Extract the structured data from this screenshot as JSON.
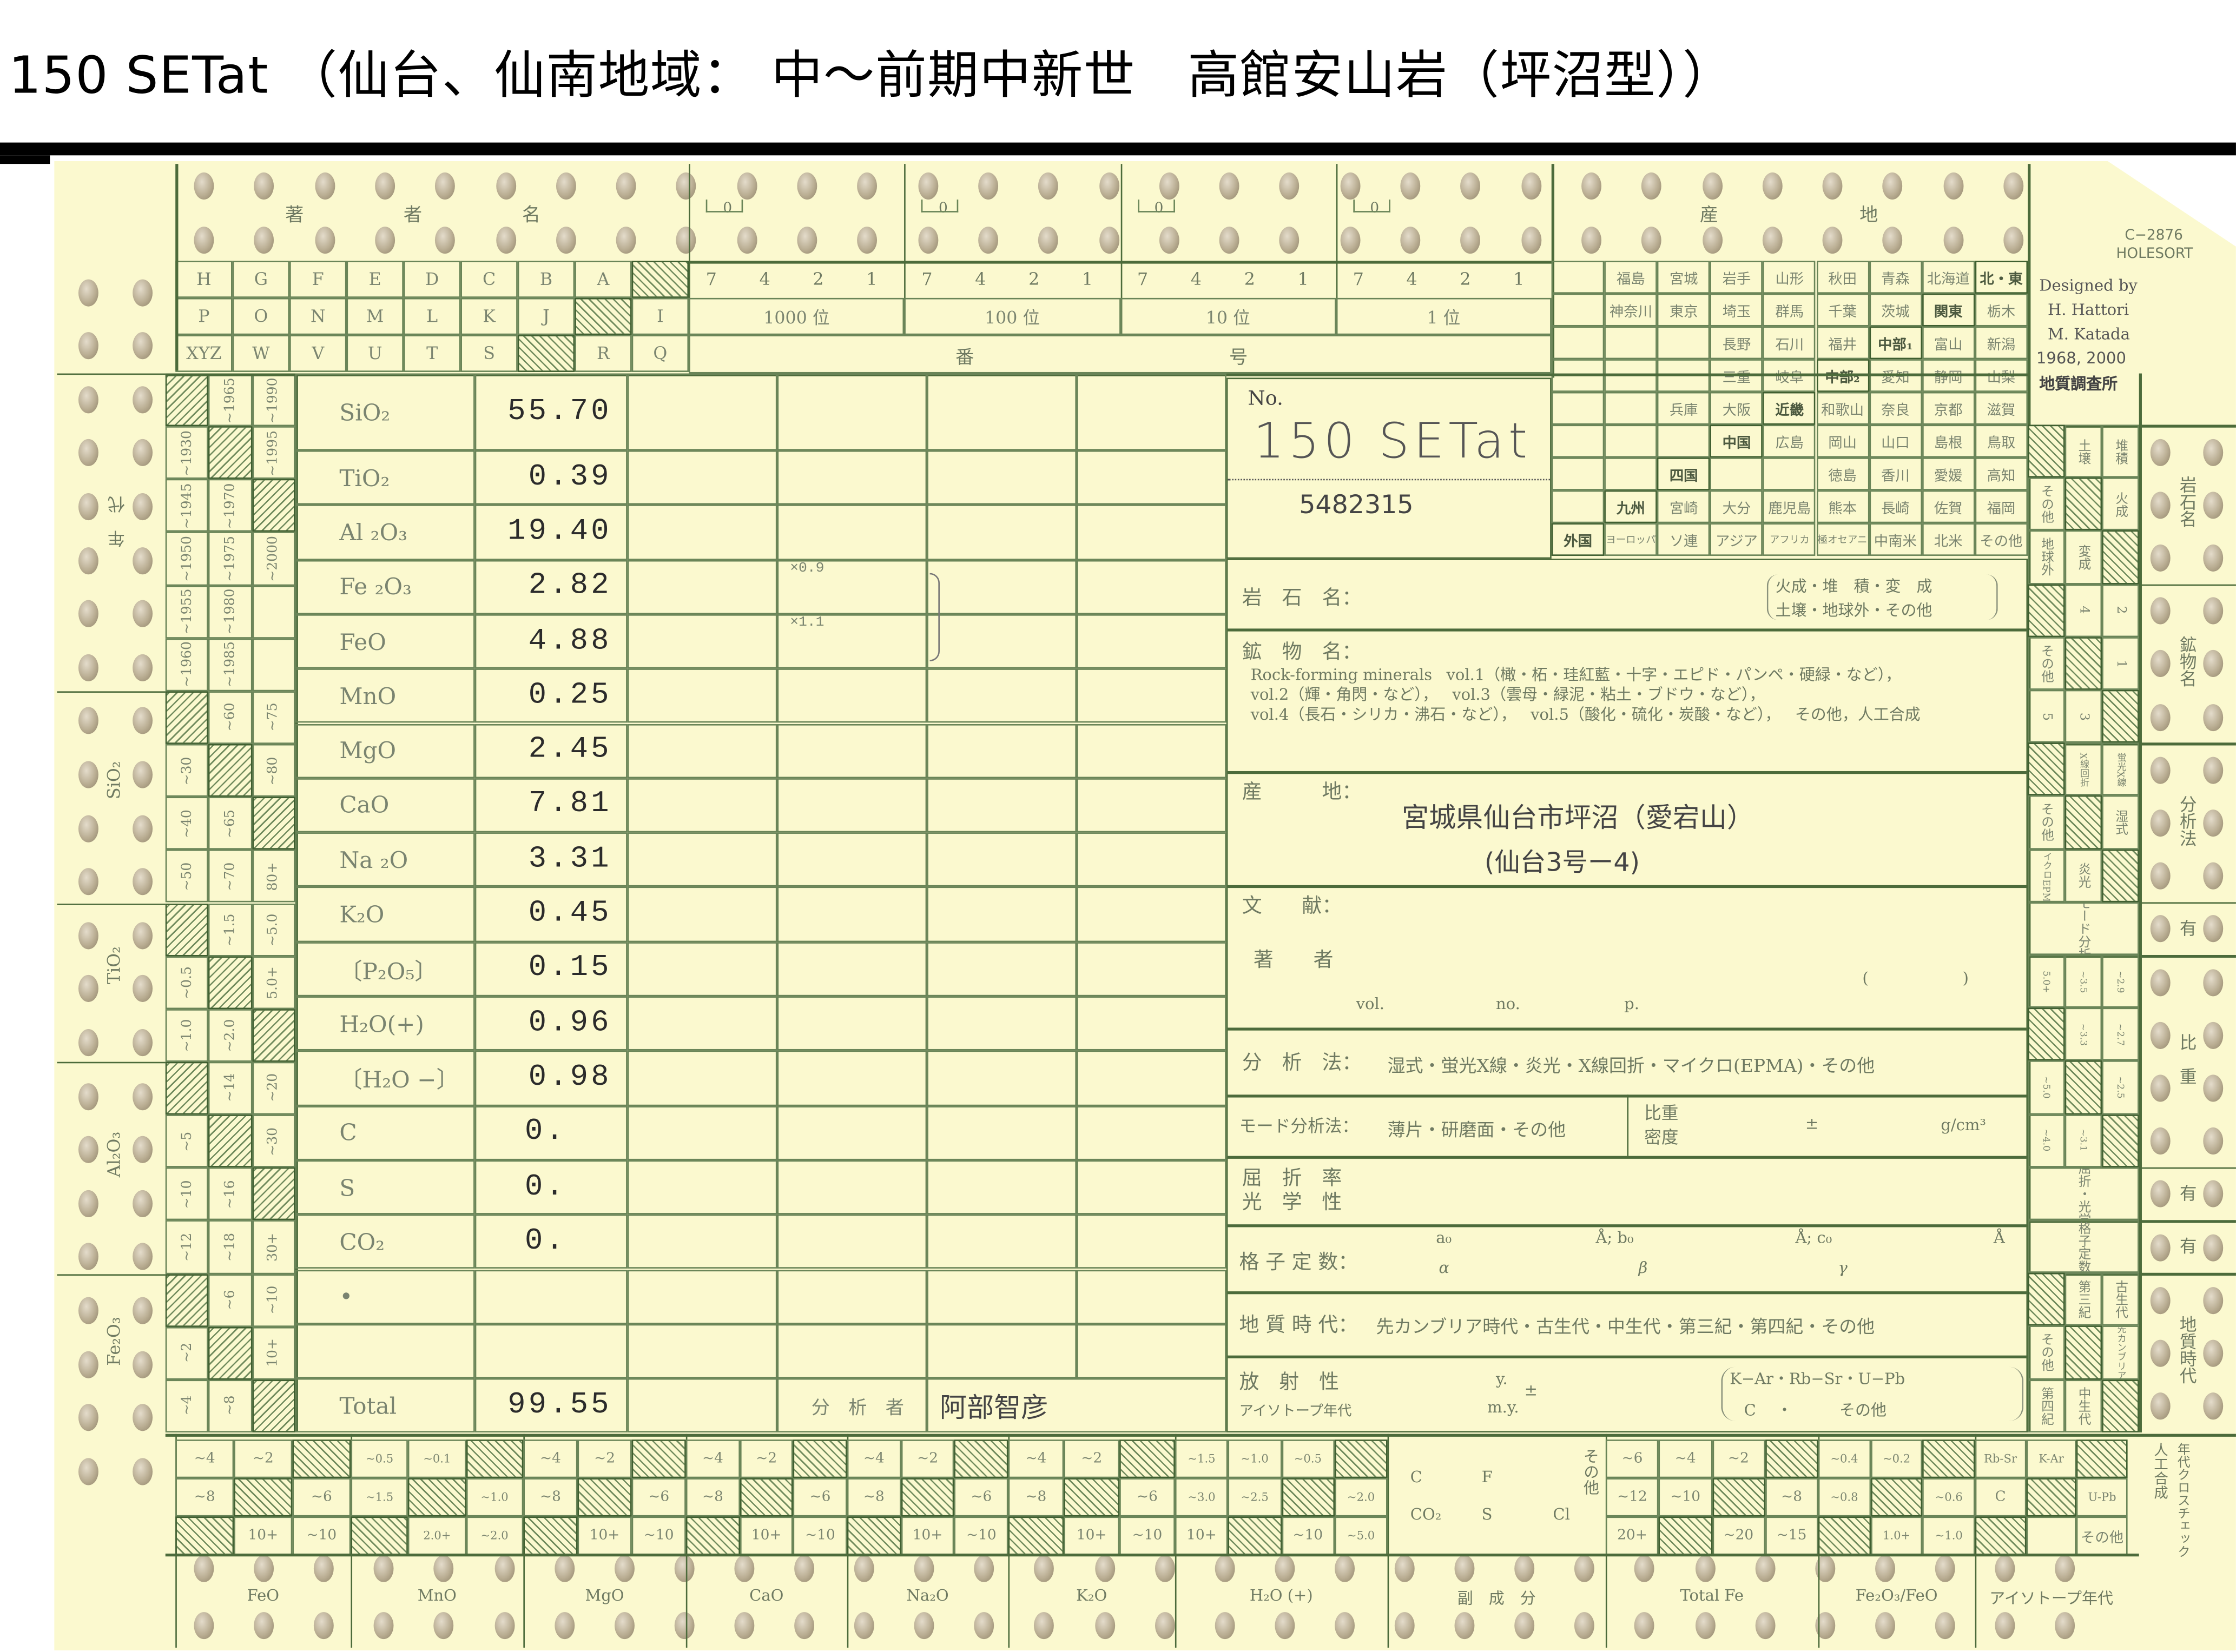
{
  "title": "150 SETat （仙台、仙南地域： 中～前期中新世　高館安山岩（坪沼型））",
  "colors": {
    "card": "#fbf9cf",
    "lines": "#4c6b3b",
    "print": "#6d7a5e",
    "typed": "#2b2b2b"
  },
  "card_info": {
    "form_code": "C−2876",
    "brand": "HOLESORT",
    "designed_by": "Designed by",
    "designer_1": "H. Hattori",
    "designer_2": "M. Katada",
    "years": "1968, 2000",
    "publisher": "地質調査所"
  },
  "author_section": {
    "label_chars": [
      "著",
      "者",
      "名"
    ],
    "rows": [
      [
        "H",
        "G",
        "F",
        "E",
        "D",
        "C",
        "B",
        "A",
        null
      ],
      [
        "P",
        "O",
        "N",
        "M",
        "L",
        "K",
        "J",
        null,
        "I"
      ],
      [
        "XYZ",
        "W",
        "V",
        "U",
        "T",
        "S",
        null,
        "R",
        "Q"
      ]
    ]
  },
  "number_section": {
    "bracket_mark": "0",
    "groups": [
      {
        "digits": [
          "7",
          "4",
          "2",
          "1"
        ],
        "place": "1000 位"
      },
      {
        "digits": [
          "7",
          "4",
          "2",
          "1"
        ],
        "place": "100 位"
      },
      {
        "digits": [
          "7",
          "4",
          "2",
          "1"
        ],
        "place": "10 位"
      },
      {
        "digits": [
          "7",
          "4",
          "2",
          "1"
        ],
        "place": "1 位"
      }
    ],
    "label_chars": [
      "番",
      "号"
    ]
  },
  "locality_section": {
    "label_chars": [
      "産",
      "地"
    ],
    "rows": [
      [
        "",
        "福島",
        "宮城",
        "岩手",
        "山形",
        "秋田",
        "青森",
        "北海道",
        "北・東"
      ],
      [
        "",
        "神奈川",
        "東京",
        "埼玉",
        "群馬",
        "千葉",
        "茨城",
        "関東",
        "栃木"
      ],
      [
        "",
        "",
        "",
        "長野",
        "石川",
        "福井",
        "中部₁",
        "富山",
        "新潟"
      ],
      [
        "",
        "",
        "",
        "三重",
        "岐阜",
        "中部₂",
        "愛知",
        "静岡",
        "山梨"
      ],
      [
        "",
        "",
        "兵庫",
        "大阪",
        "近畿",
        "和歌山",
        "奈良",
        "京都",
        "滋賀"
      ],
      [
        "",
        "",
        "",
        "中国",
        "広島",
        "岡山",
        "山口",
        "島根",
        "鳥取"
      ],
      [
        "",
        "",
        "四国",
        "",
        "",
        "徳島",
        "香川",
        "愛媛",
        "高知"
      ],
      [
        "",
        "九州",
        "宮崎",
        "大分",
        "鹿児島",
        "熊本",
        "長崎",
        "佐賀",
        "福岡"
      ],
      [
        "外国",
        "ヨーロッパ",
        "ソ連",
        "アジア",
        "アフリカ",
        "南極オセアニア",
        "中南米",
        "北米",
        "その他"
      ]
    ],
    "region_cells": [
      "北・東",
      "関東",
      "中部₁",
      "中部₂",
      "近畿",
      "中国",
      "四国",
      "九州",
      "外国"
    ]
  },
  "left_grid": {
    "groups": [
      {
        "label": "年　代",
        "rows": [
          [
            null,
            "~1965",
            "~1990"
          ],
          [
            "~1930",
            null,
            "~1995"
          ],
          [
            "~1945",
            "~1970",
            null
          ],
          [
            "~1950",
            "~1975",
            "~2000"
          ],
          [
            "~1955",
            "~1980",
            ""
          ],
          [
            "~1960",
            "~1985",
            ""
          ]
        ]
      },
      {
        "label": "SiO₂",
        "rows": [
          [
            null,
            "~60",
            "~75"
          ],
          [
            "~30",
            null,
            "~80"
          ],
          [
            "~40",
            "~65",
            null
          ],
          [
            "~50",
            "~70",
            "80+"
          ]
        ]
      },
      {
        "label": "TiO₂",
        "rows": [
          [
            null,
            "~1.5",
            "~5.0"
          ],
          [
            "~0.5",
            null,
            "5.0+"
          ],
          [
            "~1.0",
            "~2.0",
            null
          ]
        ]
      },
      {
        "label": "Al₂O₃",
        "rows": [
          [
            null,
            "~14",
            "~20"
          ],
          [
            "~5",
            null,
            "~30"
          ],
          [
            "~10",
            "~16",
            null
          ],
          [
            "~12",
            "~18",
            "30+"
          ]
        ]
      },
      {
        "label": "Fe₂O₃",
        "rows": [
          [
            null,
            "~6",
            "~10"
          ],
          [
            "~2",
            null,
            "10+"
          ],
          [
            "~4",
            "~8",
            null
          ]
        ]
      }
    ]
  },
  "right_grid": {
    "groups": [
      {
        "label": "岩石名",
        "rows": [
          [
            null,
            "土壌",
            "堆積"
          ],
          [
            "その他",
            null,
            "火成"
          ],
          [
            "地球外",
            "変成",
            null
          ]
        ]
      },
      {
        "label": "鉱物名",
        "rows": [
          [
            null,
            "4",
            "2"
          ],
          [
            "その他",
            null,
            "1"
          ],
          [
            "5",
            "3",
            null
          ]
        ]
      },
      {
        "label": "分析法",
        "rows": [
          [
            null,
            "X線回折",
            "蛍光X線"
          ],
          [
            "その他",
            null,
            "湿式"
          ],
          [
            "マイクロEPMA",
            "炎光",
            null
          ]
        ]
      },
      {
        "label": "有",
        "merged": "モード分析"
      },
      {
        "label": "比　重",
        "rows": [
          [
            "5.0+",
            "~3.5",
            "~2.9"
          ],
          [
            null,
            "~3.3",
            "~2.7"
          ],
          [
            "~5.0",
            null,
            "~2.5"
          ],
          [
            "~4.0",
            "~3.1",
            null
          ]
        ]
      },
      {
        "label": "有",
        "merged": "屈折・光学"
      },
      {
        "label": "有",
        "merged": "格子定数"
      },
      {
        "label": "地質時代",
        "rows": [
          [
            null,
            "第三紀",
            "古生代"
          ],
          [
            "その他",
            null,
            "先カンブリア"
          ],
          [
            "第四紀",
            "中生代",
            null
          ]
        ]
      }
    ]
  },
  "analysis_table": {
    "rows": [
      {
        "oxide": "SiO₂",
        "value": "55.70"
      },
      {
        "oxide": "TiO₂",
        "value": "0.39"
      },
      {
        "oxide": "Al ₂O₃",
        "value": "19.40"
      },
      {
        "oxide": "Fe ₂O₃",
        "value": "2.82"
      },
      {
        "oxide": "FeO",
        "value": "4.88"
      },
      {
        "oxide": "MnO",
        "value": "0.25"
      },
      {
        "oxide": "MgO",
        "value": "2.45"
      },
      {
        "oxide": "CaO",
        "value": "7.81"
      },
      {
        "oxide": "Na ₂O",
        "value": "3.31"
      },
      {
        "oxide": "K₂O",
        "value": "0.45"
      },
      {
        "oxide": "〔P₂O₅〕",
        "value": "0.15"
      },
      {
        "oxide": "H₂O(+)",
        "value": "0.96"
      },
      {
        "oxide": "〔H₂O −〕",
        "value": "0.98"
      },
      {
        "oxide": "C",
        "value": "0."
      },
      {
        "oxide": "S",
        "value": "0."
      },
      {
        "oxide": "CO₂",
        "value": "0."
      },
      {
        "oxide": "•",
        "value": ""
      },
      {
        "oxide": "",
        "value": ""
      },
      {
        "oxide": "Total",
        "value": "99.55"
      }
    ],
    "factor_fe2o3": "×0.9",
    "factor_feo": "×1.1",
    "analyst_label": "分　析　者",
    "analyst": "阿部智彦"
  },
  "sample_no": {
    "label": "No.",
    "handwritten": "150 SETat",
    "number": "5482315"
  },
  "form": {
    "rock_name_label": "岩　石　名：",
    "rock_name_options_1": "火成・堆　積・変　成",
    "rock_name_options_2": "土壌・地球外・その他",
    "mineral_label": "鉱　物　名：",
    "mineral_line_1a": "Rock-forming minerals",
    "mineral_line_1b": "vol.1（橄・柘・珪紅藍・十字・エピド・パンペ・硬緑・など），",
    "mineral_line_2a": "vol.2（輝・角閃・など），",
    "mineral_line_2b": "vol.3（雲母・緑泥・粘土・ブドウ・など），",
    "mineral_line_3a": "vol.4（長石・シリカ・沸石・など），",
    "mineral_line_3b": "vol.5（酸化・硫化・炭酸・など），",
    "mineral_line_3c": "その他，人工合成",
    "locality_label": "産　　　地：",
    "locality_1": "宮城県仙台市坪沼（愛宕山）",
    "locality_2": "(仙台3号ー4)",
    "reference_label": "文　　献：",
    "author_label": "著　　者",
    "vol": "vol.",
    "no": "no.",
    "p": "p.",
    "paren": "(　　　　　　)",
    "method_label": "分　析　法：",
    "method_options": "湿式・蛍光X線・炎光・X線回折・マイクロ(EPMA)・その他",
    "mode_label": "モード分析法：",
    "mode_options": "薄片・研磨面・その他",
    "density_label_1": "比重",
    "density_label_2": "密度",
    "density_pm": "±",
    "density_unit": "g/cm³",
    "refraction_label_1": "屈　折　率",
    "refraction_label_2": "光　学　性",
    "lattice_label": "格 子 定 数：",
    "a0": "a₀",
    "b0": "Å; b₀",
    "c0": "Å; c₀",
    "angstrom": "Å",
    "alpha": "α",
    "beta": "β",
    "gamma": "γ",
    "geo_age_label": "地 質 時 代：",
    "geo_age_options": "先カンブリア時代・古生代・中生代・第三紀・第四紀・その他",
    "radio_label_1": "放　射　性",
    "radio_label_2": "アイソトープ年代",
    "radio_y": "y.",
    "radio_my": "m.y.",
    "radio_pm": "±",
    "radio_methods_1": "K−Ar・Rb−Sr・U−Pb",
    "radio_methods_2": "C　 ・　　　その他"
  },
  "bottom_grid": {
    "groups": [
      {
        "label": "FeO",
        "rows": [
          [
            "~4",
            "~2",
            null
          ],
          [
            "~8",
            null,
            "~6"
          ],
          [
            null,
            "10+",
            "~10"
          ]
        ]
      },
      {
        "label": "MnO",
        "rows": [
          [
            "~0.5",
            "~0.1",
            null
          ],
          [
            "~1.5",
            null,
            "~1.0"
          ],
          [
            null,
            "2.0+",
            "~2.0"
          ]
        ]
      },
      {
        "label": "MgO",
        "rows": [
          [
            "~4",
            "~2",
            null
          ],
          [
            "~8",
            null,
            "~6"
          ],
          [
            null,
            "10+",
            "~10"
          ]
        ]
      },
      {
        "label": "CaO",
        "rows": [
          [
            "~4",
            "~2",
            null
          ],
          [
            "~8",
            null,
            "~6"
          ],
          [
            null,
            "10+",
            "~10"
          ]
        ]
      },
      {
        "label": "Na₂O",
        "rows": [
          [
            "~4",
            "~2",
            null
          ],
          [
            "~8",
            null,
            "~6"
          ],
          [
            null,
            "10+",
            "~10"
          ]
        ]
      },
      {
        "label": "K₂O",
        "rows": [
          [
            "~4",
            "~2",
            null
          ],
          [
            "~8",
            null,
            "~6"
          ],
          [
            null,
            "10+",
            "~10"
          ]
        ]
      },
      {
        "label": "H₂O (+)",
        "rows": [
          [
            "~1.5",
            "~1.0",
            "~0.5",
            null
          ],
          [
            "~3.0",
            "~2.5",
            null,
            "~2.0"
          ],
          [
            "10+",
            null,
            "~10",
            "~5.0"
          ]
        ]
      },
      {
        "label": "副　成　分",
        "minor": [
          [
            "C",
            "F",
            "その他"
          ],
          [
            "CO₂",
            "S",
            "Cl"
          ]
        ]
      },
      {
        "label": "Total Fe",
        "rows": [
          [
            "~6",
            "~4",
            "~2",
            null
          ],
          [
            "~12",
            "~10",
            null,
            "~8"
          ],
          [
            "20+",
            null,
            "~20",
            "~15"
          ]
        ]
      },
      {
        "label": "Fe₂O₃/FeO",
        "rows": [
          [
            "~0.4",
            "~0.2",
            null
          ],
          [
            "~0.8",
            null,
            "~0.6"
          ],
          [
            null,
            "1.0+",
            "~1.0"
          ]
        ]
      },
      {
        "label": "アイソトープ年代",
        "rows": [
          [
            "Rb-Sr",
            "K-Ar",
            null
          ],
          [
            "C",
            null,
            "U-Pb"
          ],
          [
            null,
            "",
            "その他"
          ]
        ]
      }
    ],
    "side_label_1": "人工合成",
    "side_label_2": "年代クロスチェック"
  }
}
